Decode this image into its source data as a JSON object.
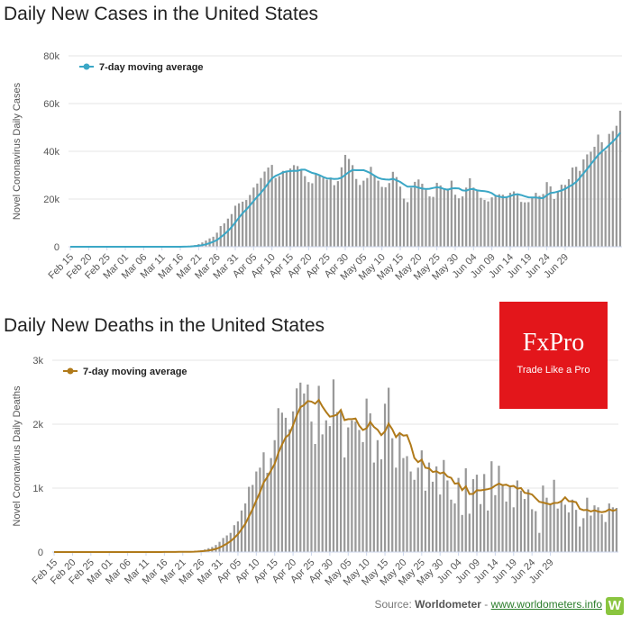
{
  "charts": {
    "cases_title": "Daily New Cases in the United States",
    "deaths_title": "Daily New Deaths in the United States"
  },
  "ad": {
    "logo_text": "FxPro",
    "tagline": "Trade Like a Pro",
    "color": "#e3161b"
  },
  "source": {
    "prefix": "Source: ",
    "name": "Worldometer",
    "separator": " - ",
    "link": "www.worldometers.info",
    "icon_letter": "W"
  },
  "chart_data": [
    {
      "type": "bar",
      "title": "Daily New Cases in the United States",
      "ylabel": "Novel Coronavirus Daily Cases",
      "ylim": [
        0,
        80000
      ],
      "yticks": [
        "0",
        "20k",
        "40k",
        "60k",
        "80k"
      ],
      "xtick_labels": [
        "Feb 15",
        "Feb 20",
        "Feb 25",
        "Mar 01",
        "Mar 06",
        "Mar 11",
        "Mar 16",
        "Mar 21",
        "Mar 26",
        "Mar 31",
        "Apr 05",
        "Apr 10",
        "Apr 15",
        "Apr 20",
        "Apr 25",
        "Apr 30",
        "May 05",
        "May 10",
        "May 15",
        "May 20",
        "May 25",
        "May 30",
        "Jun 04",
        "Jun 09",
        "Jun 14",
        "Jun 19",
        "Jun 24",
        "Jun 29"
      ],
      "x_start": "Feb 15",
      "legend": {
        "label": "7-day moving average",
        "position": "top-left"
      },
      "line_color": "#3ba7c6",
      "bar_color": "#999999",
      "values": [
        0,
        0,
        0,
        0,
        0,
        0,
        0,
        0,
        0,
        0,
        0,
        0,
        0,
        0,
        0,
        0,
        0,
        0,
        0,
        0,
        0,
        0,
        0,
        0,
        0,
        0,
        0,
        0,
        0,
        0,
        100,
        200,
        300,
        500,
        700,
        1100,
        1800,
        2600,
        3500,
        4200,
        5900,
        8700,
        9800,
        11800,
        13700,
        17200,
        18200,
        18900,
        19600,
        21700,
        24800,
        26500,
        28800,
        31500,
        33200,
        34300,
        28800,
        29600,
        31800,
        31500,
        32800,
        34200,
        33800,
        32400,
        29600,
        27100,
        26600,
        30300,
        29900,
        28900,
        28100,
        29000,
        25800,
        27500,
        33300,
        38500,
        36800,
        34200,
        28400,
        25900,
        27700,
        28800,
        33500,
        30000,
        27700,
        25100,
        24900,
        26700,
        31400,
        29200,
        25200,
        20200,
        18700,
        24700,
        27200,
        28200,
        26400,
        23900,
        21100,
        20900,
        26800,
        25700,
        24400,
        24400,
        27700,
        21800,
        20300,
        21100,
        24800,
        28700,
        24800,
        23800,
        20500,
        19600,
        19000,
        20700,
        21500,
        22000,
        21800,
        20800,
        22600,
        23200,
        22300,
        18800,
        18600,
        18700,
        20600,
        22600,
        21300,
        22100,
        27100,
        25300,
        20000,
        23400,
        26000,
        25900,
        28300,
        33200,
        33500,
        31800,
        36600,
        38700,
        39800,
        41900,
        47000,
        43800,
        40300,
        47300,
        48500,
        50700,
        57000
      ]
    },
    {
      "type": "bar",
      "title": "Daily New Deaths in the United States",
      "ylabel": "Novel Coronavirus Daily Deaths",
      "ylim": [
        0,
        3000
      ],
      "yticks": [
        "0",
        "1k",
        "2k",
        "3k"
      ],
      "xtick_labels": [
        "Feb 15",
        "Feb 20",
        "Feb 25",
        "Mar 01",
        "Mar 06",
        "Mar 11",
        "Mar 16",
        "Mar 21",
        "Mar 26",
        "Mar 31",
        "Apr 05",
        "Apr 10",
        "Apr 15",
        "Apr 20",
        "Apr 25",
        "Apr 30",
        "May 05",
        "May 10",
        "May 15",
        "May 20",
        "May 25",
        "May 30",
        "Jun 04",
        "Jun 09",
        "Jun 14",
        "Jun 19",
        "Jun 24",
        "Jun 29"
      ],
      "x_start": "Feb 15",
      "legend": {
        "label": "7-day moving average",
        "position": "top-left"
      },
      "line_color": "#b07a1a",
      "bar_color": "#999999",
      "values": [
        0,
        0,
        0,
        0,
        0,
        0,
        0,
        0,
        0,
        0,
        0,
        0,
        0,
        0,
        0,
        0,
        0,
        0,
        0,
        0,
        0,
        0,
        0,
        0,
        0,
        0,
        0,
        0,
        1,
        2,
        2,
        2,
        2,
        3,
        4,
        5,
        8,
        10,
        12,
        20,
        25,
        40,
        60,
        80,
        110,
        160,
        220,
        260,
        300,
        420,
        480,
        650,
        760,
        1020,
        1050,
        1260,
        1320,
        1560,
        1240,
        1470,
        1750,
        2250,
        2180,
        2100,
        1920,
        2200,
        2560,
        2650,
        2480,
        2620,
        2040,
        1690,
        2600,
        1840,
        2060,
        1970,
        2700,
        2190,
        2200,
        1480,
        1950,
        2060,
        2040,
        1910,
        1720,
        2400,
        2170,
        1400,
        1750,
        1450,
        2320,
        2570,
        1780,
        1320,
        1840,
        1470,
        1500,
        1260,
        1130,
        1320,
        1590,
        960,
        1400,
        1100,
        1340,
        900,
        1440,
        1120,
        820,
        760,
        1160,
        580,
        1310,
        600,
        1140,
        1210,
        750,
        1220,
        650,
        1420,
        890,
        1350,
        1050,
        790,
        1040,
        700,
        1120,
        960,
        830,
        980,
        670,
        640,
        300,
        1040,
        850,
        740,
        1130,
        680,
        810,
        740,
        620,
        820,
        660,
        400,
        530,
        850,
        570,
        730,
        700,
        590,
        470,
        760,
        700,
        690
      ],
      "values_before_start": []
    }
  ]
}
